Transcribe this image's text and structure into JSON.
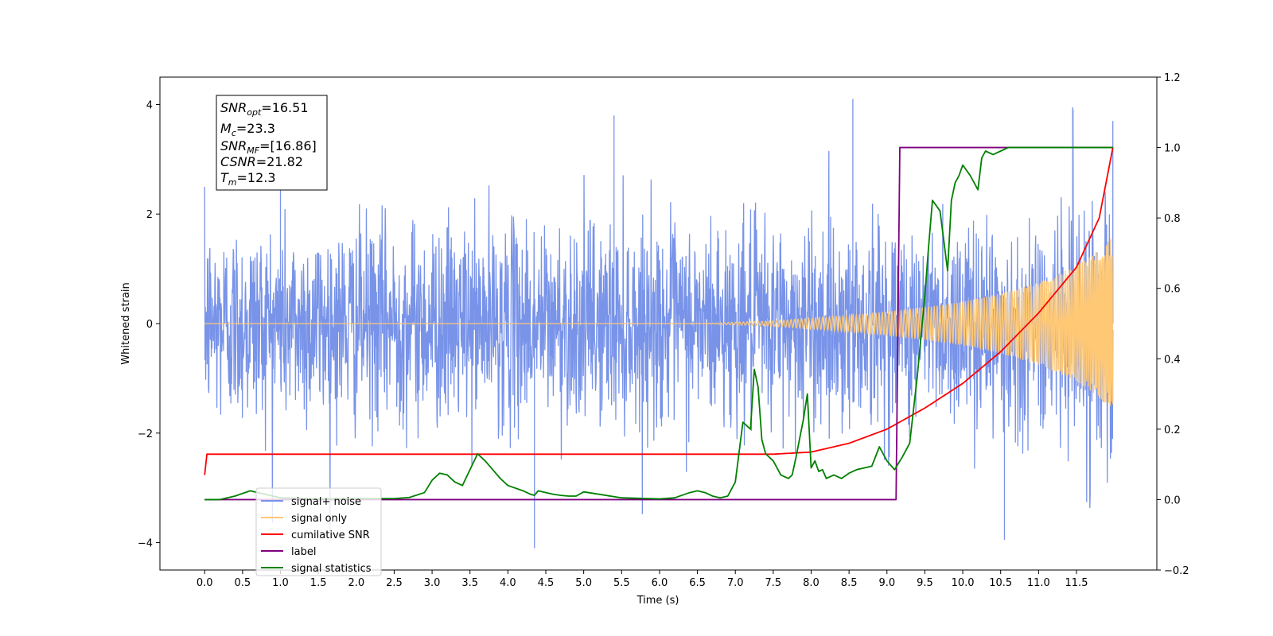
{
  "chart_data": {
    "type": "line",
    "xlabel": "Time (s)",
    "ylabel": "Whitened strain",
    "xlim": [
      -0.59,
      12.56
    ],
    "ylim_left": [
      -4.5,
      4.5
    ],
    "ylim_right": [
      -0.2,
      1.2
    ],
    "xticks": [
      "0.0",
      "0.5",
      "1.0",
      "1.5",
      "2.0",
      "2.5",
      "3.0",
      "3.5",
      "4.0",
      "4.5",
      "5.0",
      "5.5",
      "6.0",
      "6.5",
      "7.0",
      "7.5",
      "8.0",
      "8.5",
      "9.0",
      "9.5",
      "10.0",
      "10.5",
      "11.0",
      "11.5"
    ],
    "yticks_left": [
      "4",
      "2",
      "0",
      "−2",
      "−4"
    ],
    "yticks_left_values": [
      4,
      2,
      0,
      -2,
      -4
    ],
    "yticks_right": [
      "1.2",
      "1.0",
      "0.8",
      "0.6",
      "0.4",
      "0.2",
      "0.0",
      "−0.2"
    ],
    "yticks_right_values": [
      1.2,
      1.0,
      0.8,
      0.6,
      0.4,
      0.2,
      0.0,
      -0.2
    ],
    "info_box": [
      {
        "sym": "SNR",
        "sub": "opt",
        "val": "=16.51"
      },
      {
        "sym": "M",
        "sub": "c",
        "val": "=23.3"
      },
      {
        "sym": "SNR",
        "sub": "MF",
        "val": "=[16.86]"
      },
      {
        "sym": "CSNR",
        "sub": "",
        "val": "=21.82"
      },
      {
        "sym": "T",
        "sub": "m",
        "val": "=12.3"
      }
    ],
    "legend": {
      "placement": "lower-left",
      "entries": [
        {
          "label": "signal+ noise",
          "color": "#7893e8"
        },
        {
          "label": "signal only",
          "color": "#ffc875"
        },
        {
          "label": "cumilative SNR",
          "color": "#ff0000"
        },
        {
          "label": "label",
          "color": "#800080"
        },
        {
          "label": "signal statistics",
          "color": "#008000"
        }
      ]
    },
    "series": [
      {
        "name": "signal+ noise",
        "axis": "left",
        "color": "#7893e8",
        "noise_std": 0.9,
        "x_range": [
          0.0,
          11.98
        ],
        "spike_extremes": [
          [
            1.0,
            3.9
          ],
          [
            4.35,
            -4.1
          ],
          [
            5.4,
            3.8
          ],
          [
            8.55,
            4.1
          ],
          [
            10.55,
            -3.95
          ],
          [
            11.45,
            3.95
          ],
          [
            11.98,
            3.7
          ]
        ]
      },
      {
        "name": "signal only",
        "axis": "left",
        "color": "#ffc875",
        "x": [
          0.0,
          6.5,
          7.5,
          8.5,
          9.0,
          9.5,
          10.0,
          10.5,
          11.0,
          11.5,
          11.8,
          11.98
        ],
        "amplitude": [
          0.0,
          0.0,
          0.05,
          0.15,
          0.22,
          0.3,
          0.4,
          0.55,
          0.75,
          1.05,
          1.35,
          1.6
        ]
      },
      {
        "name": "cumilative SNR",
        "axis": "right",
        "color": "#ff0000",
        "x": [
          0.0,
          0.02,
          7.5,
          8.0,
          8.5,
          9.0,
          9.5,
          10.0,
          10.5,
          11.0,
          11.5,
          11.8,
          11.98
        ],
        "values": [
          0.07,
          0.129,
          0.129,
          0.135,
          0.16,
          0.2,
          0.26,
          0.33,
          0.42,
          0.53,
          0.66,
          0.8,
          1.0
        ]
      },
      {
        "name": "label",
        "axis": "right",
        "color": "#800080",
        "x": [
          0.0,
          9.12,
          9.17,
          11.98
        ],
        "values": [
          0.0,
          0.0,
          1.0,
          1.0
        ]
      },
      {
        "name": "signal statistics",
        "axis": "right",
        "color": "#008000",
        "x": [
          0.0,
          0.2,
          0.4,
          0.6,
          0.8,
          1.0,
          1.5,
          2.0,
          2.5,
          2.7,
          2.9,
          3.0,
          3.1,
          3.2,
          3.3,
          3.4,
          3.5,
          3.6,
          3.7,
          3.8,
          3.9,
          4.0,
          4.2,
          4.3,
          4.35,
          4.4,
          4.5,
          4.6,
          4.7,
          4.8,
          4.9,
          5.0,
          5.5,
          6.0,
          6.2,
          6.4,
          6.5,
          6.6,
          6.7,
          6.8,
          6.9,
          7.0,
          7.1,
          7.2,
          7.25,
          7.3,
          7.35,
          7.4,
          7.5,
          7.55,
          7.6,
          7.65,
          7.7,
          7.75,
          7.8,
          7.9,
          7.95,
          8.0,
          8.05,
          8.1,
          8.15,
          8.2,
          8.3,
          8.4,
          8.5,
          8.6,
          8.7,
          8.8,
          8.9,
          9.0,
          9.1,
          9.2,
          9.3,
          9.4,
          9.5,
          9.55,
          9.6,
          9.7,
          9.8,
          9.85,
          9.9,
          9.95,
          10.0,
          10.1,
          10.2,
          10.25,
          10.3,
          10.4,
          10.5,
          10.6,
          10.7,
          11.0,
          11.5,
          11.98
        ],
        "values": [
          0.0,
          0.0,
          0.01,
          0.025,
          0.015,
          0.005,
          0.002,
          0.003,
          0.003,
          0.006,
          0.02,
          0.055,
          0.075,
          0.07,
          0.05,
          0.04,
          0.085,
          0.13,
          0.11,
          0.085,
          0.06,
          0.04,
          0.025,
          0.015,
          0.012,
          0.025,
          0.02,
          0.015,
          0.012,
          0.01,
          0.01,
          0.022,
          0.005,
          0.002,
          0.005,
          0.02,
          0.025,
          0.02,
          0.01,
          0.005,
          0.01,
          0.05,
          0.22,
          0.2,
          0.37,
          0.32,
          0.17,
          0.13,
          0.11,
          0.09,
          0.07,
          0.065,
          0.06,
          0.07,
          0.12,
          0.23,
          0.3,
          0.09,
          0.11,
          0.08,
          0.085,
          0.06,
          0.07,
          0.06,
          0.075,
          0.085,
          0.09,
          0.095,
          0.15,
          0.11,
          0.085,
          0.12,
          0.16,
          0.35,
          0.58,
          0.72,
          0.85,
          0.82,
          0.65,
          0.85,
          0.9,
          0.92,
          0.95,
          0.92,
          0.88,
          0.97,
          0.99,
          0.98,
          0.99,
          1.0,
          1.0,
          1.0,
          1.0,
          1.0
        ]
      }
    ]
  }
}
